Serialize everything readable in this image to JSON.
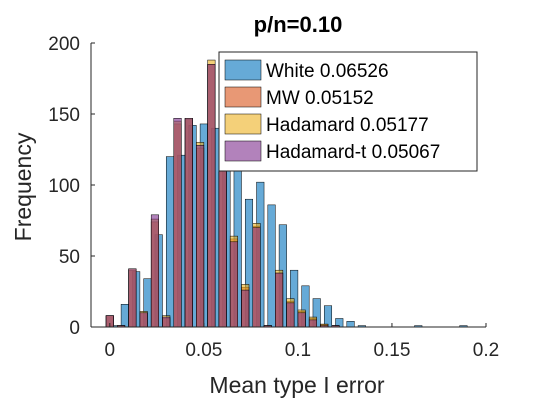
{
  "chart_data": {
    "type": "bar",
    "title": "p/n=0.10",
    "xlabel": "Mean type I error",
    "ylabel": "Frequency",
    "xlim": [
      -0.01,
      0.2
    ],
    "ylim": [
      0,
      200
    ],
    "xticks": [
      0,
      0.05,
      0.1,
      0.15,
      0.2
    ],
    "xtick_labels": [
      "0",
      "0.05",
      "0.1",
      "0.15",
      "0.2"
    ],
    "yticks": [
      0,
      50,
      100,
      150,
      200
    ],
    "ytick_labels": [
      "0",
      "50",
      "100",
      "150",
      "200"
    ],
    "legend_position": "top-right",
    "series": [
      {
        "name": "White 0.06526",
        "color": "#0072BD",
        "bin_width": 0.004,
        "x": [
          0.002,
          0.008,
          0.014,
          0.02,
          0.026,
          0.032,
          0.038,
          0.044,
          0.05,
          0.056,
          0.062,
          0.068,
          0.074,
          0.08,
          0.086,
          0.092,
          0.098,
          0.104,
          0.11,
          0.116,
          0.122,
          0.128,
          0.134,
          0.14,
          0.146,
          0.152,
          0.158,
          0.164,
          0.17,
          0.176,
          0.182,
          0.188
        ],
        "values": [
          1,
          16,
          39,
          34,
          65,
          120,
          121,
          142,
          143,
          140,
          145,
          130,
          90,
          102,
          86,
          72,
          40,
          29,
          20,
          15,
          6,
          4,
          1,
          0,
          0,
          0,
          0,
          1,
          0,
          0,
          0,
          1
        ]
      },
      {
        "name": "MW 0.05152",
        "color": "#D95319",
        "bin_width": 0.004,
        "x": [
          0.0,
          0.006,
          0.012,
          0.018,
          0.024,
          0.03,
          0.036,
          0.042,
          0.048,
          0.054,
          0.06,
          0.066,
          0.072,
          0.078,
          0.084,
          0.09,
          0.096,
          0.102,
          0.108,
          0.114,
          0.12,
          0.126
        ],
        "values": [
          8,
          1,
          40,
          10,
          74,
          6,
          143,
          146,
          126,
          185,
          128,
          62,
          28,
          71,
          1,
          38,
          18,
          11,
          6,
          2,
          1,
          0
        ]
      },
      {
        "name": "Hadamard 0.05177",
        "color": "#EDB120",
        "bin_width": 0.004,
        "x": [
          0.0,
          0.006,
          0.012,
          0.018,
          0.024,
          0.03,
          0.036,
          0.042,
          0.048,
          0.054,
          0.06,
          0.066,
          0.072,
          0.078,
          0.084,
          0.09,
          0.096,
          0.102,
          0.108,
          0.114,
          0.12,
          0.126
        ],
        "values": [
          8,
          1,
          41,
          11,
          76,
          8,
          145,
          147,
          130,
          188,
          130,
          64,
          30,
          73,
          1,
          40,
          20,
          12,
          7,
          2,
          1,
          0
        ]
      },
      {
        "name": "Hadamard-t 0.05067",
        "color": "#7E2F8E",
        "bin_width": 0.004,
        "x": [
          0.0,
          0.006,
          0.012,
          0.018,
          0.024,
          0.03,
          0.036,
          0.042,
          0.048,
          0.054,
          0.06,
          0.066,
          0.072,
          0.078,
          0.084,
          0.09,
          0.096,
          0.102,
          0.108,
          0.114,
          0.12,
          0.126
        ],
        "values": [
          8,
          1,
          41,
          10,
          79,
          7,
          147,
          147,
          128,
          185,
          127,
          60,
          26,
          70,
          1,
          38,
          17,
          10,
          5,
          1,
          1,
          0
        ]
      }
    ]
  }
}
